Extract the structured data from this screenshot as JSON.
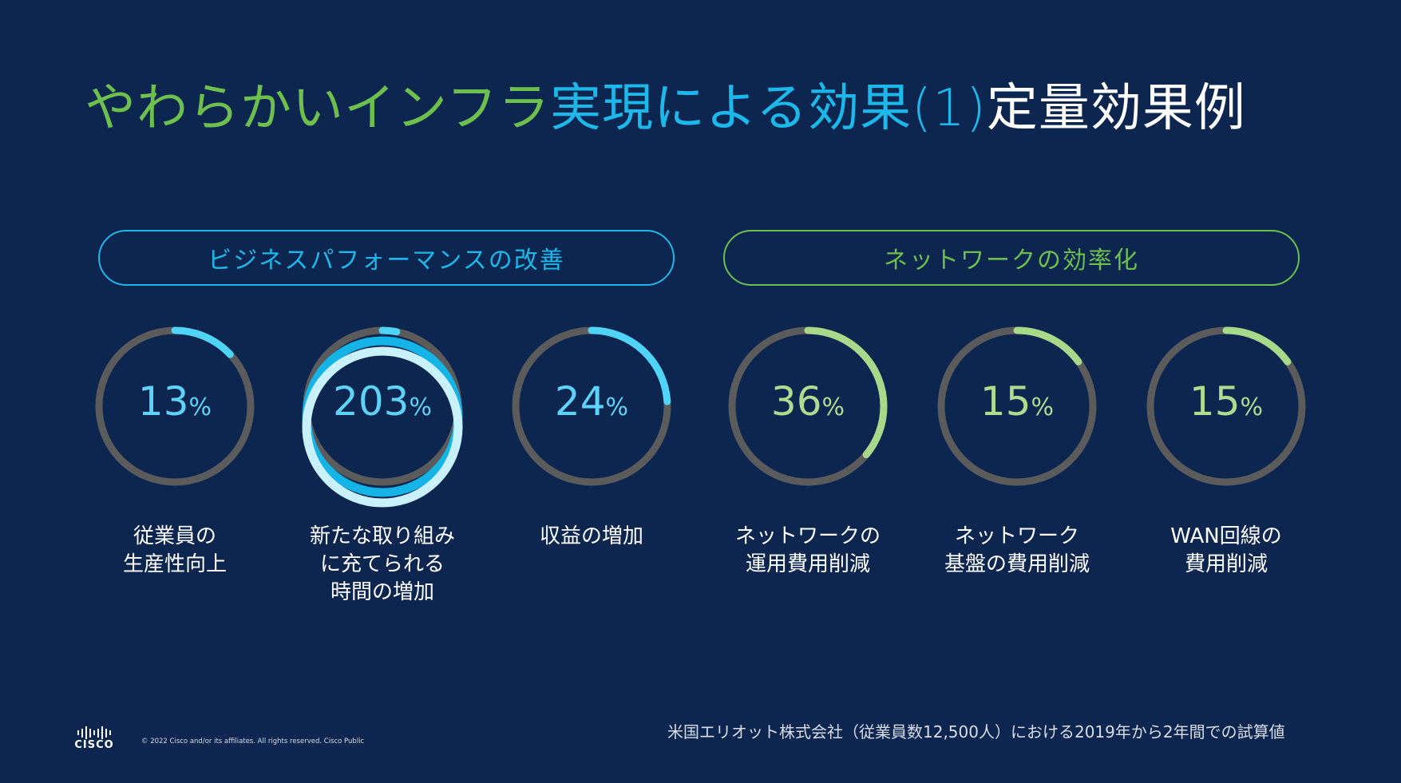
{
  "title": {
    "part1": "やわらかいインフラ",
    "part2": "実現による効果(1)",
    "part3": "定量効果例"
  },
  "groups": [
    {
      "label": "ビジネスパフォーマンスの改善",
      "color": "#1db8ea"
    },
    {
      "label": "ネットワークの効率化",
      "color": "#6dc04d"
    }
  ],
  "metrics": [
    {
      "value": "13",
      "unit": "%",
      "fraction": 0.13,
      "label1": "従業員の",
      "label2": "生産性向上",
      "label3": ""
    },
    {
      "value": "203",
      "unit": "%",
      "fraction": 2.03,
      "label1": "新たな取り組み",
      "label2": "に充てられる",
      "label3": "時間の増加"
    },
    {
      "value": "24",
      "unit": "%",
      "fraction": 0.24,
      "label1": "収益の増加",
      "label2": "",
      "label3": ""
    },
    {
      "value": "36",
      "unit": "%",
      "fraction": 0.36,
      "label1": "ネットワークの",
      "label2": "運用費用削減",
      "label3": ""
    },
    {
      "value": "15",
      "unit": "%",
      "fraction": 0.15,
      "label1": "ネットワーク",
      "label2": "基盤の費用削減",
      "label3": ""
    },
    {
      "value": "15",
      "unit": "%",
      "fraction": 0.15,
      "label1": "WAN回線の",
      "label2": "費用削減",
      "label3": ""
    }
  ],
  "colors": {
    "blue_arc": "#4fd3f7",
    "green_arc": "#a8d98a",
    "track": "#5b5b5b",
    "background": "#0d2650"
  },
  "footer": {
    "note": "米国エリオット株式会社（従業員数12,500人）における2019年から2年間での試算値",
    "copyright": "© 2022  Cisco and/or its affiliates. All rights reserved.   Cisco Public",
    "logo": "CISCO"
  }
}
